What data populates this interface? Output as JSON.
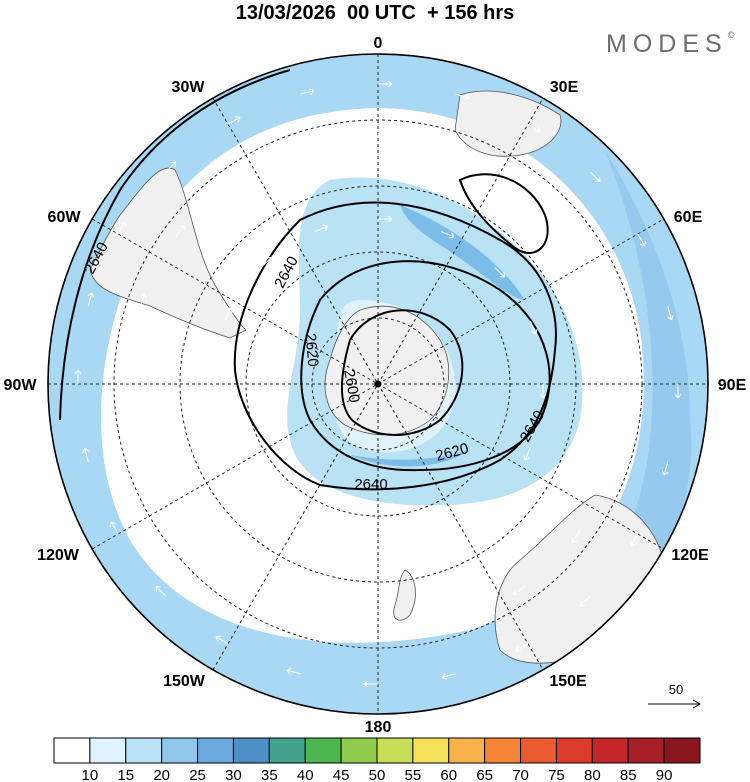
{
  "header": {
    "title": "13/03/2026  00 UTC  + 156 hrs",
    "brand": "MODES",
    "brand_mark": "©"
  },
  "map": {
    "projection": "polar-stereographic-south",
    "meridian_labels": [
      {
        "name": "lbl-0",
        "text": "0"
      },
      {
        "name": "lbl-30e",
        "text": "30E"
      },
      {
        "name": "lbl-60e",
        "text": "60E"
      },
      {
        "name": "lbl-90e",
        "text": "90E"
      },
      {
        "name": "lbl-120e",
        "text": "120E"
      },
      {
        "name": "lbl-150e",
        "text": "150E"
      },
      {
        "name": "lbl-180",
        "text": "180"
      },
      {
        "name": "lbl-150w",
        "text": "150W"
      },
      {
        "name": "lbl-120w",
        "text": "120W"
      },
      {
        "name": "lbl-90w",
        "text": "90W"
      },
      {
        "name": "lbl-60w",
        "text": "60W"
      },
      {
        "name": "lbl-30w",
        "text": "30W"
      }
    ],
    "contour_labels": [
      "2640",
      "2640",
      "2620",
      "2600",
      "2620",
      "2640",
      "2640"
    ],
    "shading_color": "#a9d8f4",
    "deep_shading_color": "#7bbde8",
    "land_color": "#f0f0f0"
  },
  "vector_scale": {
    "label": "50"
  },
  "colorbar": {
    "ticks": [
      "10",
      "15",
      "20",
      "25",
      "30",
      "35",
      "40",
      "45",
      "50",
      "55",
      "60",
      "65",
      "70",
      "75",
      "80",
      "85",
      "90"
    ],
    "colors": [
      "#ffffff",
      "#dff3fe",
      "#b9e2f9",
      "#91c6ec",
      "#6aa8de",
      "#4f8fc8",
      "#42a28c",
      "#4db64f",
      "#8fca4d",
      "#c8de56",
      "#f6e25a",
      "#f7b24b",
      "#f48437",
      "#ea5b2f",
      "#dc3b2c",
      "#c52629",
      "#a81e26",
      "#8a171d"
    ]
  }
}
